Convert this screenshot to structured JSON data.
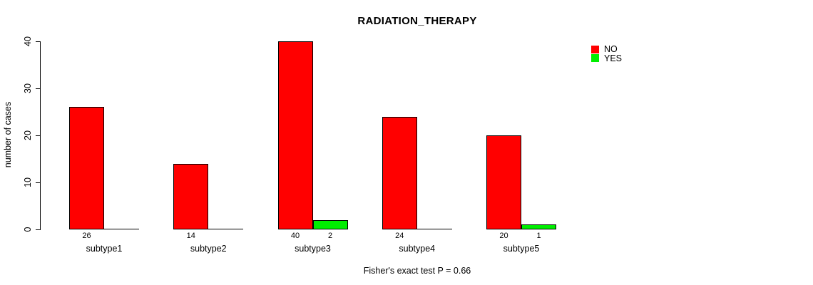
{
  "title": "RADIATION_THERAPY",
  "caption": "Fisher's exact test P = 0.66",
  "chart_data": {
    "type": "bar",
    "title": "RADIATION_THERAPY",
    "subtitle": "Fisher's exact test P = 0.66",
    "xlabel": "",
    "ylabel": "number of cases",
    "categories": [
      "subtype1",
      "subtype2",
      "subtype3",
      "subtype4",
      "subtype5"
    ],
    "series": [
      {
        "name": "NO",
        "color": "#FF0000",
        "values": [
          26,
          14,
          40,
          24,
          20
        ]
      },
      {
        "name": "YES",
        "color": "#00EE00",
        "values": [
          0,
          0,
          2,
          0,
          1
        ]
      }
    ],
    "bar_value_labels": [
      [
        "26",
        "14",
        "40",
        "24",
        "20"
      ],
      [
        "",
        "",
        "2",
        "",
        "1"
      ]
    ],
    "ylim": [
      0,
      40
    ],
    "yticks": [
      0,
      10,
      20,
      30,
      40
    ],
    "grid": false,
    "legend_position": "top-right"
  }
}
